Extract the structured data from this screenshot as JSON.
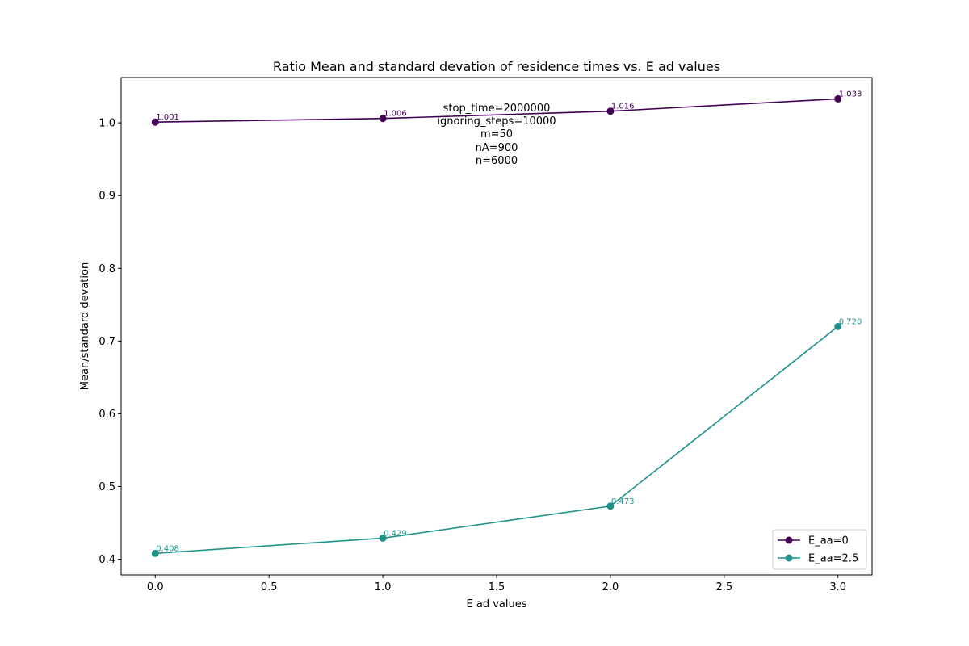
{
  "chart_data": {
    "type": "line",
    "title": "Ratio Mean and standard devation of residence times vs. E ad values",
    "xlabel": "E ad values",
    "ylabel": "Mean/standard devation",
    "xlim": [
      -0.15,
      3.15
    ],
    "ylim": [
      0.3784,
      1.0623
    ],
    "xticks": [
      "0.0",
      "0.5",
      "1.0",
      "1.5",
      "2.0",
      "2.5",
      "3.0"
    ],
    "yticks": [
      "0.4",
      "0.5",
      "0.6",
      "0.7",
      "0.8",
      "0.9",
      "1.0"
    ],
    "x": [
      0.0,
      1.0,
      2.0,
      3.0
    ],
    "series": [
      {
        "name": "E_aa=0",
        "color": "#440154",
        "values": [
          1.001,
          1.006,
          1.016,
          1.033
        ],
        "labels": [
          "1.001",
          "1.006",
          "1.016",
          "1.033"
        ]
      },
      {
        "name": "E_aa=2.5",
        "color": "#21918c",
        "values": [
          0.408,
          0.429,
          0.473,
          0.72
        ],
        "labels": [
          "0.408",
          "0.429",
          "0.473",
          "0.720"
        ]
      }
    ],
    "annotation": [
      "stop_time=2000000",
      "ignoring_steps=10000",
      "m=50",
      "nA=900",
      "n=6000"
    ],
    "legend_position": "lower-right",
    "grid": false
  }
}
